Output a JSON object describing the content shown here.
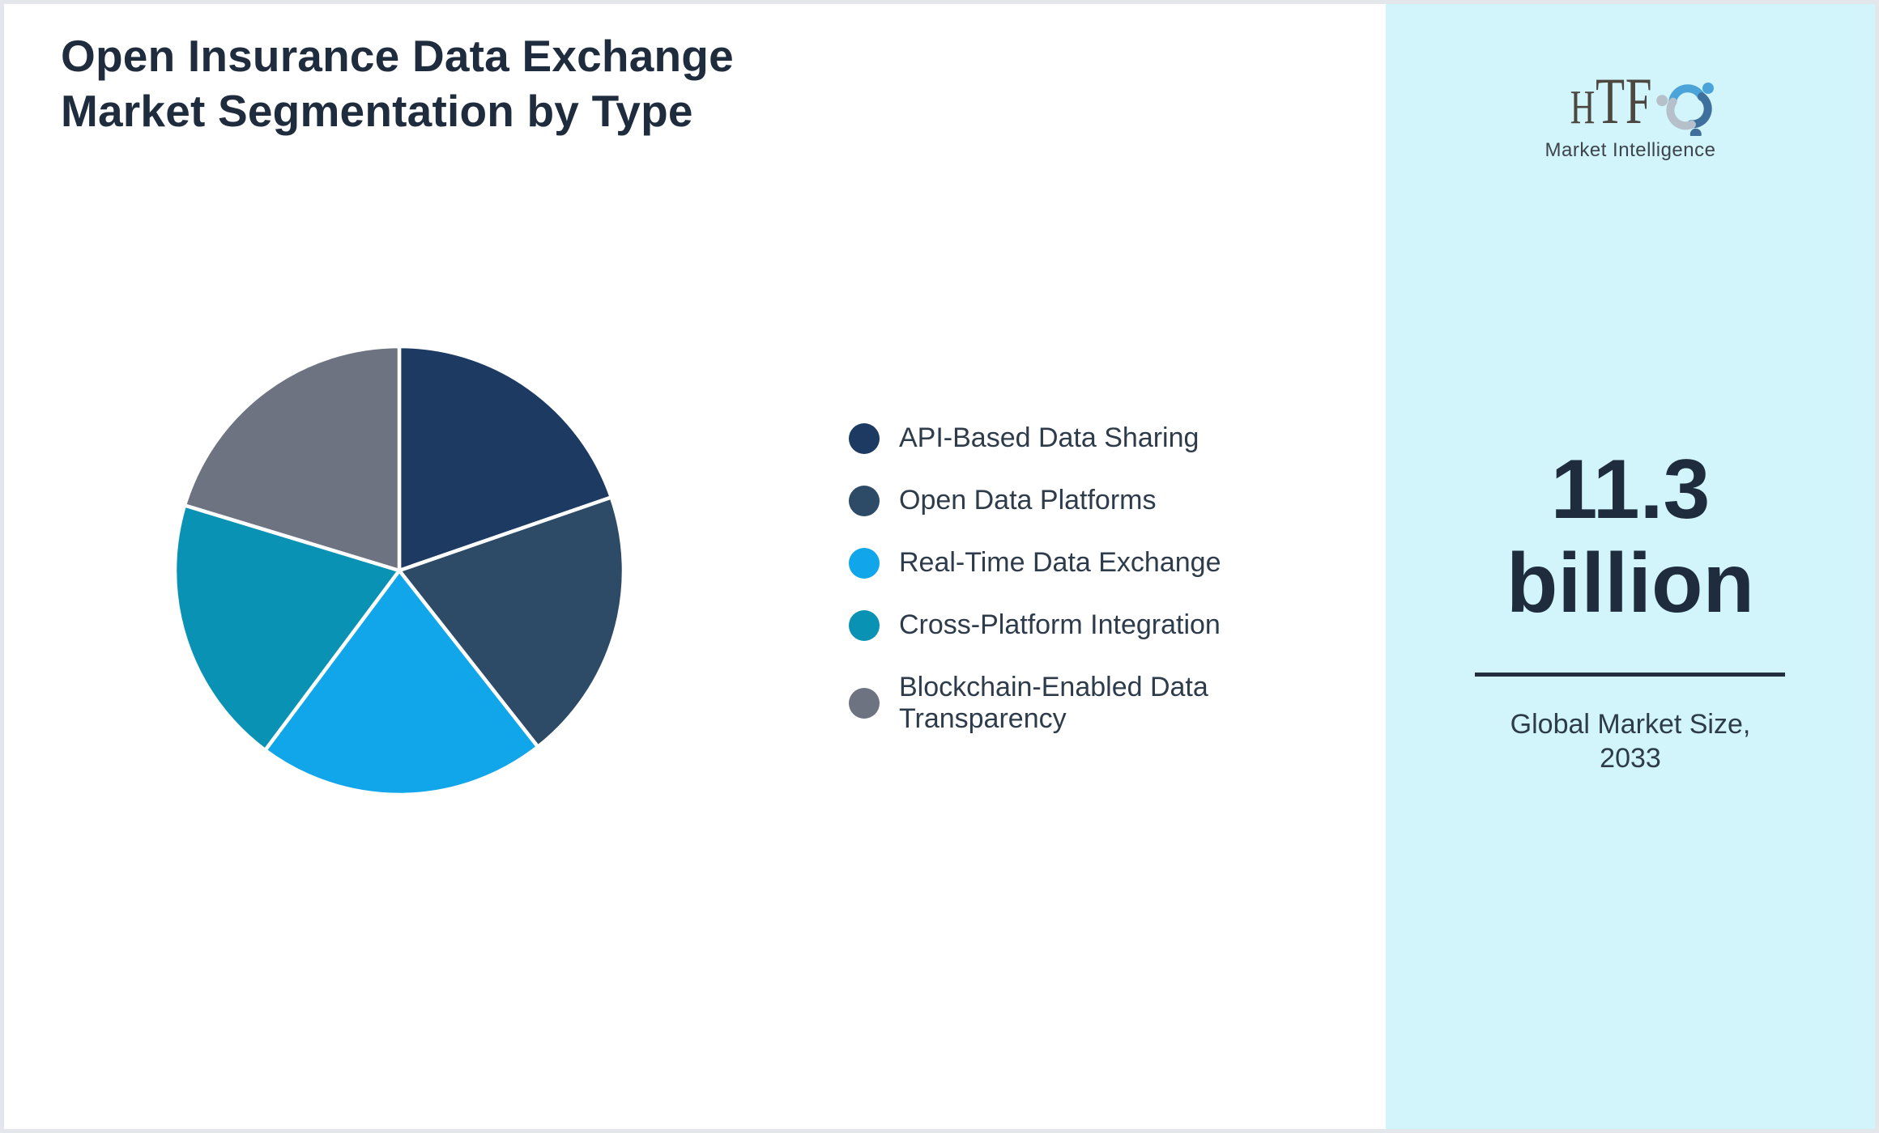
{
  "header": {
    "title_line1": "Open Insurance Data Exchange",
    "title_line2": "Market Segmentation by Type"
  },
  "chart_data": {
    "type": "pie",
    "title": "Open Insurance Data Exchange Market Segmentation by Type",
    "labels": [
      "API-Based Data Sharing",
      "Open Data Platforms",
      "Real-Time Data Exchange",
      "Cross-Platform Integration",
      "Blockchain-Enabled Data Transparency"
    ],
    "values": [
      19.7,
      19.7,
      20.8,
      19.5,
      20.3
    ],
    "unit": "percent (estimated from slice angles; no data labels shown)",
    "colors": [
      "#1d3a62",
      "#2d4b67",
      "#10a6e9",
      "#0a92b5",
      "#6d7380"
    ],
    "start_angle_deg": 0,
    "direction": "clockwise",
    "slice_border_color": "#ffffff",
    "legend_position": "right",
    "data_labels_visible": false
  },
  "sidebar": {
    "background": "#d2f4fb",
    "logo": {
      "text": "HTF",
      "subtext": "Market Intelligence",
      "swirl_colors": [
        "#4ba4d9",
        "#3e6f9d",
        "#b5c0ca"
      ]
    },
    "stat_line1": "11.3",
    "stat_line2": "billion",
    "caption_line1": "Global Market Size,",
    "caption_line2": "2033"
  },
  "colors": {
    "title_text": "#1f2c3d",
    "legend_text": "#2d3b4a",
    "divider": "#222e3e",
    "page_border": "#e3e6ea"
  }
}
